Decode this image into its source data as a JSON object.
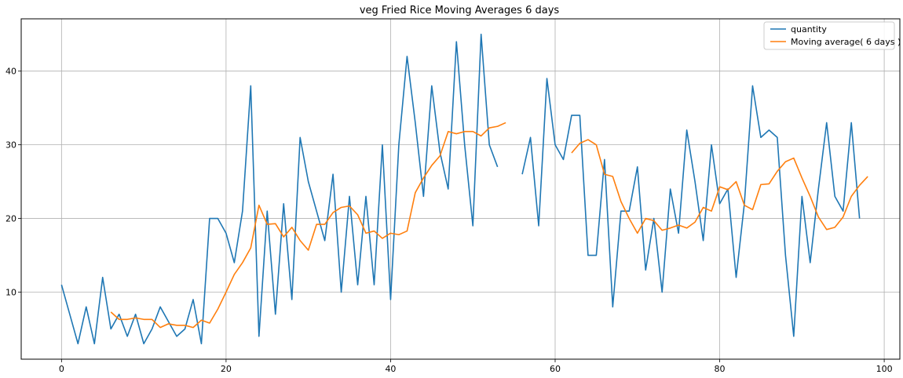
{
  "chart_data": {
    "type": "line",
    "title": "veg Fried Rice Moving Averages 6 days",
    "xlabel": "",
    "ylabel": "",
    "xlim": [
      -4.9,
      101.9
    ],
    "ylim": [
      0.9,
      47.1
    ],
    "xticks": [
      0,
      20,
      40,
      60,
      80,
      100
    ],
    "yticks": [
      10,
      20,
      30,
      40
    ],
    "grid": true,
    "legend_position": "top-right",
    "series": [
      {
        "name": "quantity",
        "color": "#1f77b4",
        "x": [
          0,
          1,
          2,
          3,
          4,
          5,
          6,
          7,
          8,
          9,
          10,
          11,
          12,
          13,
          14,
          15,
          16,
          17,
          18,
          19,
          20,
          21,
          22,
          23,
          24,
          25,
          26,
          27,
          28,
          29,
          30,
          31,
          32,
          33,
          34,
          35,
          36,
          37,
          38,
          39,
          40,
          41,
          42,
          43,
          44,
          45,
          46,
          47,
          48,
          49,
          50,
          51,
          52,
          53,
          54,
          55,
          56,
          57,
          58,
          59,
          60,
          61,
          62,
          63,
          64,
          65,
          66,
          67,
          68,
          69,
          70,
          71,
          72,
          73,
          74,
          75,
          76,
          77,
          78,
          79,
          80,
          81,
          82,
          83,
          84,
          85,
          86,
          87,
          88,
          89,
          90,
          91,
          92,
          93,
          94,
          95,
          96,
          97
        ],
        "y": [
          11,
          7,
          3,
          8,
          3,
          12,
          5,
          7,
          4,
          7,
          3,
          5,
          8,
          6,
          4,
          5,
          9,
          3,
          20,
          20,
          18,
          14,
          21,
          38,
          4,
          21,
          7,
          22,
          9,
          31,
          25,
          21,
          17,
          26,
          10,
          23,
          11,
          23,
          11,
          30,
          9,
          30,
          42,
          33,
          23,
          38,
          29,
          24,
          44,
          30,
          19,
          45,
          30,
          27,
          null,
          null,
          26,
          31,
          19,
          39,
          30,
          28,
          34,
          34,
          15,
          15,
          28,
          8,
          21,
          21,
          27,
          13,
          20,
          10,
          24,
          18,
          32,
          25,
          17,
          30,
          22,
          24,
          12,
          22,
          38,
          31,
          32,
          31,
          15,
          4,
          23,
          14,
          24,
          33,
          23,
          21,
          33,
          20
        ]
      },
      {
        "name": "Moving average( 6 days )",
        "color": "#ff7f0e",
        "x": [
          6,
          7,
          8,
          9,
          10,
          11,
          12,
          13,
          14,
          15,
          16,
          17,
          18,
          19,
          20,
          21,
          22,
          23,
          24,
          25,
          26,
          27,
          28,
          29,
          30,
          31,
          32,
          33,
          34,
          35,
          36,
          37,
          38,
          39,
          40,
          41,
          42,
          43,
          44,
          45,
          46,
          47,
          48,
          49,
          50,
          51,
          52,
          53,
          54,
          55,
          56,
          57,
          58,
          59,
          60,
          61,
          62,
          63,
          64,
          65,
          66,
          67,
          68,
          69,
          70,
          71,
          72,
          73,
          74,
          75,
          76,
          77,
          78,
          79,
          80,
          81,
          82,
          83,
          84,
          85,
          86,
          87,
          88,
          89,
          90,
          91,
          92,
          93,
          94,
          95,
          96,
          97,
          98
        ],
        "y": [
          7.3,
          6.3,
          6.3,
          6.5,
          6.3,
          6.3,
          5.2,
          5.7,
          5.5,
          5.5,
          5.2,
          6.2,
          5.8,
          7.7,
          10.0,
          12.4,
          14.0,
          16.0,
          21.8,
          19.2,
          19.3,
          17.5,
          18.8,
          17.0,
          15.7,
          19.2,
          19.2,
          20.8,
          21.5,
          21.7,
          20.5,
          18.0,
          18.3,
          17.3,
          18.0,
          17.8,
          18.3,
          23.5,
          25.5,
          27.2,
          28.5,
          31.8,
          31.5,
          31.8,
          31.8,
          31.2,
          32.3,
          32.5,
          33.0,
          null,
          null,
          null,
          null,
          null,
          null,
          null,
          28.9,
          30.2,
          30.7,
          30.0,
          26.0,
          25.7,
          22.3,
          20.0,
          18.0,
          20.0,
          19.7,
          18.4,
          18.7,
          19.1,
          18.7,
          19.5,
          21.5,
          21.0,
          24.3,
          23.9,
          25.0,
          21.8,
          21.2,
          24.6,
          24.7,
          26.4,
          27.7,
          28.2,
          25.5,
          23.0,
          20.2,
          18.5,
          18.8,
          20.2,
          23.0,
          24.5,
          25.7
        ]
      }
    ]
  }
}
